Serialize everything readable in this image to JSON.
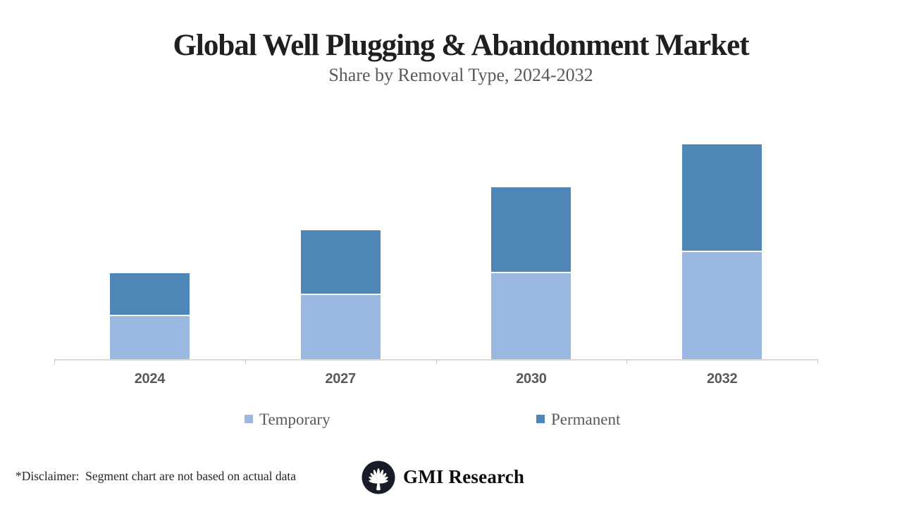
{
  "page": {
    "background": "#ffffff"
  },
  "header": {
    "title": "Global Well Plugging & Abandonment Market",
    "subtitle": "Share by Removal Type, 2024-2032"
  },
  "chart_data": {
    "type": "bar",
    "stacked": true,
    "title": "Global Well Plugging & Abandonment Market",
    "subtitle": "Share by Removal Type, 2024-2032",
    "categories": [
      "2024",
      "2027",
      "2030",
      "2032"
    ],
    "series": [
      {
        "name": "Temporary",
        "color": "#9bb8e0",
        "values": [
          1.0,
          1.5,
          2.0,
          2.5
        ]
      },
      {
        "name": "Permanent",
        "color": "#4e86b8",
        "values": [
          1.0,
          1.5,
          2.0,
          2.5
        ]
      }
    ],
    "xlabel": "",
    "ylabel": "",
    "value_axis_visible": false,
    "gridlines": false,
    "legend_position": "bottom",
    "axis_color": "#d9d9d9",
    "tick_color": "#c6c6c6",
    "category_label_color": "#595959",
    "units_note": "relative units estimated from bar heights; no value axis shown (segments split ~50/50, totals grow 2:3:4:5)"
  },
  "legend": {
    "items": [
      {
        "label": "Temporary",
        "color": "#9bb8e0"
      },
      {
        "label": "Permanent",
        "color": "#4e86b8"
      }
    ]
  },
  "footer": {
    "disclaimer": "*Disclaimer:  Segment chart are not based on actual data",
    "brand": "GMI Research",
    "logo_icon": "fan-palmette-icon"
  }
}
